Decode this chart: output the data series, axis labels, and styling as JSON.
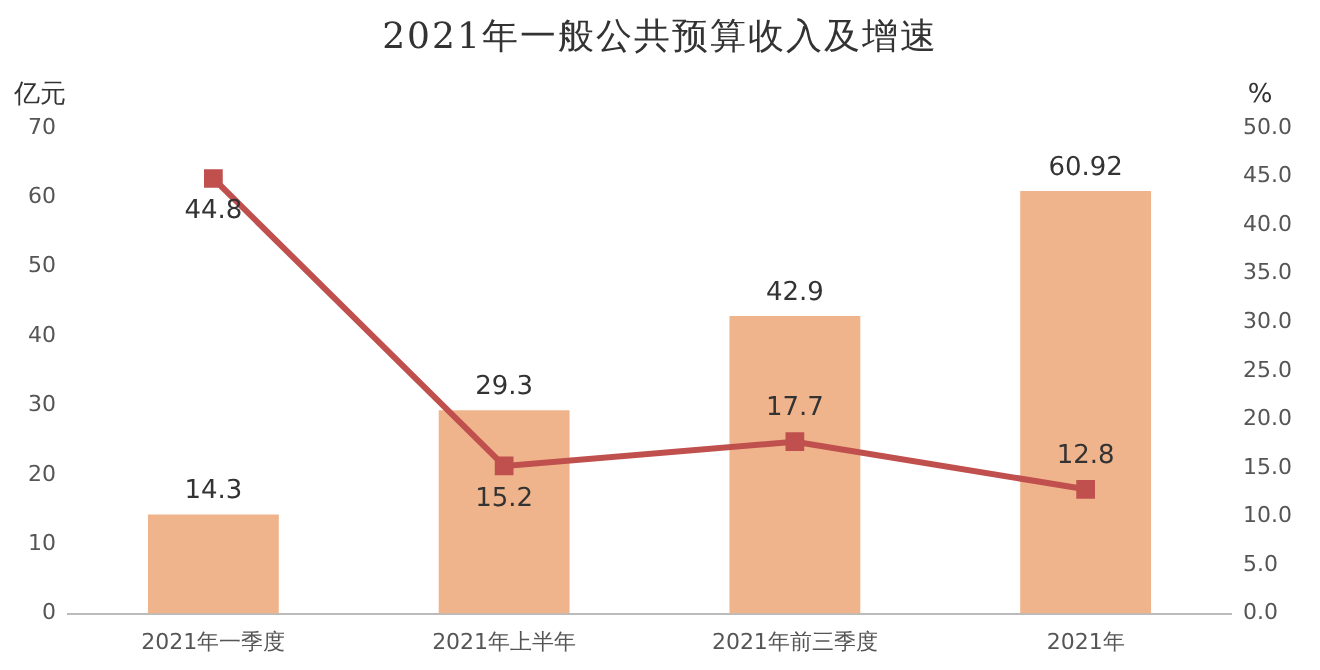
{
  "chart_data": {
    "type": "bar",
    "title": "2021年一般公共预算收入及增速",
    "ylabel": "亿元",
    "y2label": "%",
    "categories": [
      "2021年一季度",
      "2021年上半年",
      "2021年前三季度",
      "2021年"
    ],
    "series": [
      {
        "color": "#f0b48c",
        "values": [
          14.3,
          29.3,
          42.9,
          60.92
        ]
      },
      {
        "type": "line",
        "axis": "y2",
        "color": "#c0504d",
        "values": [
          44.8,
          15.2,
          17.7,
          12.8
        ]
      }
    ],
    "ylim": [
      0,
      70
    ],
    "yticks": [
      0,
      10,
      20,
      30,
      40,
      50,
      60,
      70
    ],
    "y2lim": [
      0,
      50
    ],
    "y2ticks": [
      {
        "value": 0,
        "label": "0.0"
      },
      {
        "value": 5,
        "label": "5.0"
      },
      {
        "value": 10,
        "label": "10.0"
      },
      {
        "value": 15,
        "label": "15.0"
      },
      {
        "value": 20,
        "label": "20.0"
      },
      {
        "value": 25,
        "label": "25.0"
      },
      {
        "value": 30,
        "label": "30.0"
      },
      {
        "value": 35,
        "label": "35.0"
      },
      {
        "value": 40,
        "label": "40.0"
      },
      {
        "value": 45,
        "label": "45.0"
      },
      {
        "value": 50,
        "label": "50.0"
      }
    ],
    "marker": "square",
    "data_labels": true,
    "grid": false,
    "legend": false
  }
}
